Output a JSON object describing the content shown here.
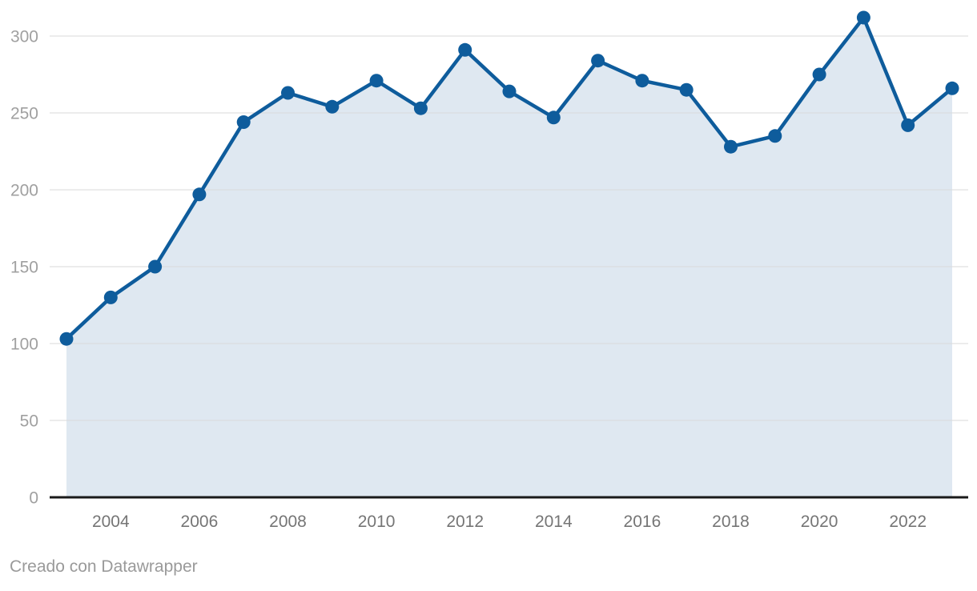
{
  "chart_data": {
    "type": "area",
    "x": [
      2003,
      2004,
      2005,
      2006,
      2007,
      2008,
      2009,
      2010,
      2011,
      2012,
      2013,
      2014,
      2015,
      2016,
      2017,
      2018,
      2019,
      2020,
      2021,
      2022,
      2023
    ],
    "values": [
      103,
      130,
      150,
      197,
      244,
      263,
      254,
      271,
      253,
      291,
      264,
      247,
      284,
      271,
      265,
      228,
      235,
      275,
      312,
      242,
      266
    ],
    "xticks": [
      2004,
      2006,
      2008,
      2010,
      2012,
      2014,
      2016,
      2018,
      2020,
      2022
    ],
    "yticks": [
      0,
      50,
      100,
      150,
      200,
      250,
      300
    ],
    "xlim": [
      2002.6,
      2023.4
    ],
    "ylim": [
      0,
      323
    ],
    "grid": "horizontal",
    "legend": "none",
    "marker": "circle"
  },
  "colors": {
    "line": "#0e5c9c",
    "area_fill": "#dfe8f1",
    "gridline": "#dadada",
    "axis_line": "#1a1a1a",
    "y_tick_label": "#a0a0a0",
    "x_tick_label": "#757575",
    "footer_text": "#9a9a9a"
  },
  "footer": {
    "text": "Creado con Datawrapper"
  }
}
